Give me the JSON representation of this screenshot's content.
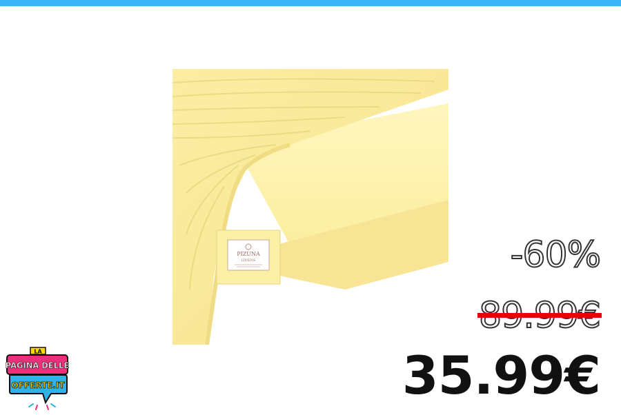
{
  "colors": {
    "top_bar": "#3bb5f5",
    "strike": "#e60000",
    "product_yellow": "#fdf0a8"
  },
  "product": {
    "image": "yellow-fitted-sheet-photo",
    "package_brand": "PIZUNA",
    "package_subbrand": "LINENS"
  },
  "pricing": {
    "discount": "-60%",
    "old_price": "89.99€",
    "new_price": "35.99€"
  },
  "logo": {
    "line1": "LA",
    "line2": "PAGINA DELLE",
    "line3": "OFFERTE.IT"
  }
}
